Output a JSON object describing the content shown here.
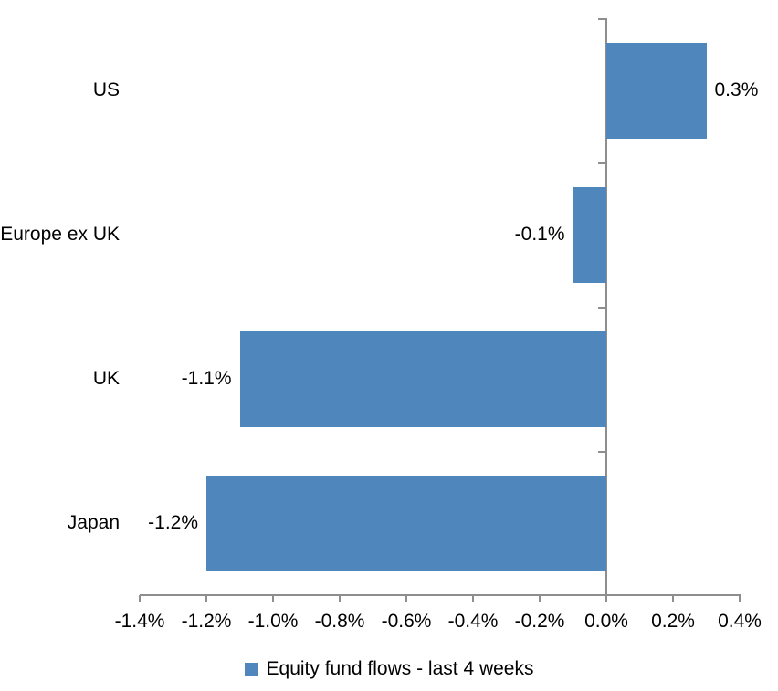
{
  "chart_data": {
    "type": "bar",
    "orientation": "horizontal",
    "title": "",
    "categories": [
      "US",
      "Europe ex UK",
      "UK",
      "Japan"
    ],
    "series": [
      {
        "name": "Equity fund flows - last 4 weeks",
        "values": [
          0.3,
          -0.1,
          -1.1,
          -1.2
        ]
      }
    ],
    "data_labels": [
      "0.3%",
      "-0.1%",
      "-1.1%",
      "-1.2%"
    ],
    "xlabel": "",
    "ylabel": "",
    "xlim": [
      -1.4,
      0.4
    ],
    "x_tick_step": 0.2,
    "x_tick_labels": [
      "-1.4%",
      "-1.2%",
      "-1.0%",
      "-0.8%",
      "-0.6%",
      "-0.4%",
      "-0.2%",
      "0.0%",
      "0.2%",
      "0.4%"
    ],
    "grid": false,
    "legend_position": "bottom"
  },
  "legend": {
    "entries": [
      "Equity fund flows - last 4 weeks"
    ]
  },
  "colors": {
    "bar": "#4F86BC",
    "axis": "#8E8E8E",
    "text": "#000000",
    "background": "#FFFFFF"
  }
}
